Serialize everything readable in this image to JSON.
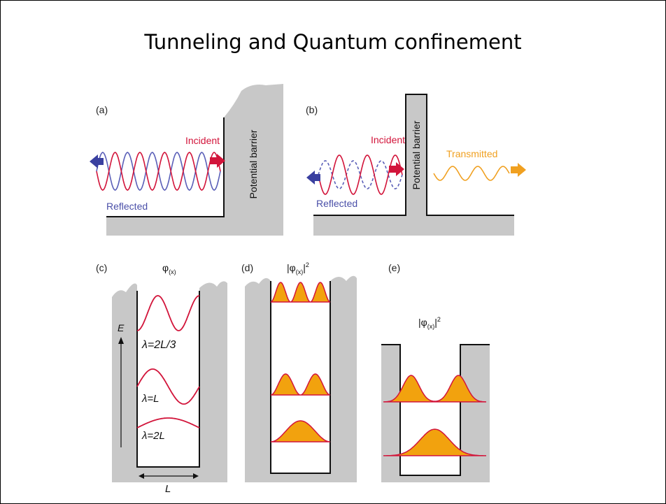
{
  "title": "Tunneling and Quantum confinement",
  "panels": [
    {
      "label": "(a)",
      "incident": "Incident",
      "reflected": "Reflected",
      "barrier": "Potential barrier"
    },
    {
      "label": "(b)",
      "incident": "Incident",
      "reflected": "Reflected",
      "barrier": "Potential barrier",
      "transmitted": "Transmitted"
    },
    {
      "label": "(c)",
      "function": {
        "symbol": "φ",
        "subscript": "(x)"
      },
      "energy": "E",
      "levels": [
        "λ=2L/3",
        "λ=L",
        "λ=2L"
      ],
      "width": "L"
    },
    {
      "label": "(d)",
      "function": {
        "open": "|φ",
        "subscript": "(x)",
        "close": "|",
        "power": "2"
      }
    },
    {
      "label": "(e)",
      "function": {
        "open": "|φ",
        "subscript": "(x)",
        "close": "|",
        "power": "2"
      }
    }
  ]
}
